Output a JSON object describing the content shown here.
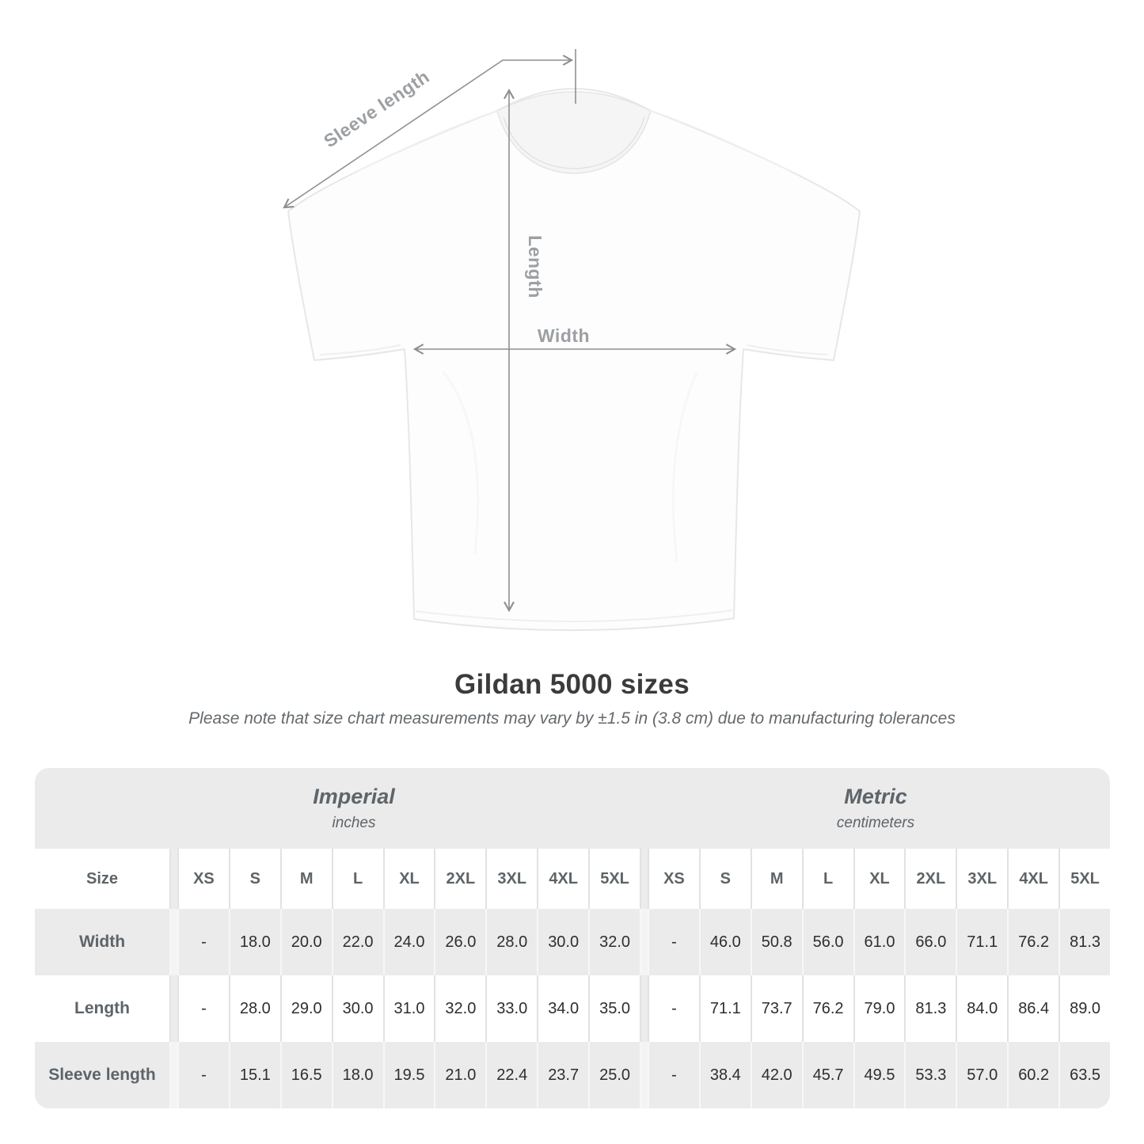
{
  "diagram": {
    "sleeve_length_label": "Sleeve length",
    "length_label": "Length",
    "width_label": "Width"
  },
  "title": "Gildan 5000 sizes",
  "note": "Please note that size chart measurements may vary by ±1.5 in (3.8 cm) due to manufacturing tolerances",
  "table": {
    "size_header": "Size",
    "groups": [
      {
        "name": "Imperial",
        "unit": "inches"
      },
      {
        "name": "Metric",
        "unit": "centimeters"
      }
    ],
    "sizes": [
      "XS",
      "S",
      "M",
      "L",
      "XL",
      "2XL",
      "3XL",
      "4XL",
      "5XL"
    ],
    "rows": [
      {
        "label": "Width",
        "imperial": [
          "-",
          "18.0",
          "20.0",
          "22.0",
          "24.0",
          "26.0",
          "28.0",
          "30.0",
          "32.0"
        ],
        "metric": [
          "-",
          "46.0",
          "50.8",
          "56.0",
          "61.0",
          "66.0",
          "71.1",
          "76.2",
          "81.3"
        ]
      },
      {
        "label": "Length",
        "imperial": [
          "-",
          "28.0",
          "29.0",
          "30.0",
          "31.0",
          "32.0",
          "33.0",
          "34.0",
          "35.0"
        ],
        "metric": [
          "-",
          "71.1",
          "73.7",
          "76.2",
          "79.0",
          "81.3",
          "84.0",
          "86.4",
          "89.0"
        ]
      },
      {
        "label": "Sleeve length",
        "imperial": [
          "-",
          "15.1",
          "16.5",
          "18.0",
          "19.5",
          "21.0",
          "22.4",
          "23.7",
          "25.0"
        ],
        "metric": [
          "-",
          "38.4",
          "42.0",
          "45.7",
          "49.5",
          "53.3",
          "57.0",
          "60.2",
          "63.5"
        ]
      }
    ]
  },
  "chart_data": {
    "type": "table",
    "title": "Gildan 5000 sizes",
    "note": "Please note that size chart measurements may vary by ±1.5 in (3.8 cm) due to manufacturing tolerances",
    "unit_groups": [
      {
        "group": "Imperial",
        "unit": "inches"
      },
      {
        "group": "Metric",
        "unit": "centimeters"
      }
    ],
    "sizes": [
      "XS",
      "S",
      "M",
      "L",
      "XL",
      "2XL",
      "3XL",
      "4XL",
      "5XL"
    ],
    "measurements": [
      {
        "name": "Width",
        "imperial_inches": [
          "-",
          18.0,
          20.0,
          22.0,
          24.0,
          26.0,
          28.0,
          30.0,
          32.0
        ],
        "metric_cm": [
          "-",
          46.0,
          50.8,
          56.0,
          61.0,
          66.0,
          71.1,
          76.2,
          81.3
        ]
      },
      {
        "name": "Length",
        "imperial_inches": [
          "-",
          28.0,
          29.0,
          30.0,
          31.0,
          32.0,
          33.0,
          34.0,
          35.0
        ],
        "metric_cm": [
          "-",
          71.1,
          73.7,
          76.2,
          79.0,
          81.3,
          84.0,
          86.4,
          89.0
        ]
      },
      {
        "name": "Sleeve length",
        "imperial_inches": [
          "-",
          15.1,
          16.5,
          18.0,
          19.5,
          21.0,
          22.4,
          23.7,
          25.0
        ],
        "metric_cm": [
          "-",
          38.4,
          42.0,
          45.7,
          49.5,
          53.3,
          57.0,
          60.2,
          63.5
        ]
      }
    ]
  },
  "colors": {
    "band_gray": "#ebebeb",
    "row_gray": "#ebebeb",
    "header_text": "#5d6468",
    "label_text": "#5d646a",
    "value_text": "#2e2e2e",
    "title_text": "#3b3b3b",
    "note_text": "#64696d",
    "annotation_text": "#9ca0a3",
    "measure_line": "#8f8f8f"
  }
}
